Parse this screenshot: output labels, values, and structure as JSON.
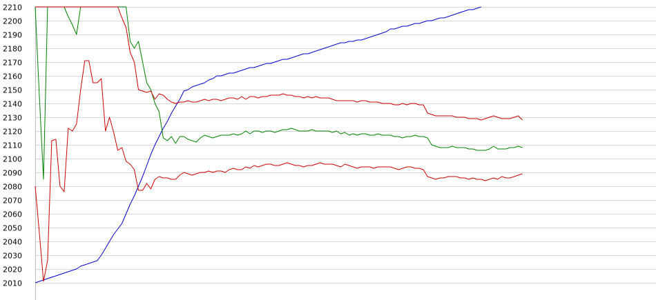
{
  "chart_data": {
    "type": "line",
    "title": "",
    "xlabel": "",
    "ylabel": "",
    "ylim": [
      2010,
      2210
    ],
    "yticks": [
      2010,
      2020,
      2030,
      2040,
      2050,
      2060,
      2070,
      2080,
      2090,
      2100,
      2110,
      2120,
      2130,
      2140,
      2150,
      2160,
      2170,
      2180,
      2190,
      2200,
      2210
    ],
    "grid": true,
    "legend": "none",
    "x_points": 150,
    "series": [
      {
        "color": "#0000cc",
        "values": [
          2010,
          2011,
          2012,
          2013,
          2014,
          2015,
          2016,
          2017,
          2018,
          2019,
          2020,
          2022,
          2023,
          2024,
          2025,
          2026,
          2030,
          2035,
          2040,
          2045,
          2049,
          2053,
          2060,
          2067,
          2073,
          2080,
          2087,
          2095,
          2103,
          2110,
          2116,
          2122,
          2127,
          2133,
          2138,
          2143,
          2149,
          2150,
          2152,
          2153,
          2154,
          2155,
          2157,
          2158,
          2160,
          2160,
          2161,
          2162,
          2162,
          2163,
          2164,
          2165,
          2166,
          2166,
          2167,
          2168,
          2169,
          2169,
          2170,
          2171,
          2172,
          2172,
          2173,
          2174,
          2175,
          2176,
          2176,
          2177,
          2178,
          2179,
          2180,
          2181,
          2182,
          2183,
          2184,
          2184,
          2185,
          2185,
          2186,
          2186,
          2187,
          2188,
          2189,
          2190,
          2191,
          2192,
          2194,
          2194,
          2195,
          2196,
          2196,
          2197,
          2198,
          2198,
          2199,
          2200,
          2200,
          2201,
          2202,
          2202,
          2203,
          2204,
          2205,
          2206,
          2207,
          2208,
          2208,
          2209,
          2210
        ]
      },
      {
        "color": "#008000",
        "values": [
          2210,
          2145,
          2085,
          2210,
          2210,
          2210,
          2210,
          2210,
          2203,
          2197,
          2190,
          2210,
          2210,
          2210,
          2210,
          2210,
          2210,
          2210,
          2210,
          2210,
          2210,
          2210,
          2210,
          2185,
          2180,
          2185,
          2170,
          2155,
          2150,
          2140,
          2134,
          2115,
          2113,
          2116,
          2111,
          2116,
          2116,
          2114,
          2113,
          2112,
          2115,
          2117,
          2116,
          2115,
          2116,
          2117,
          2117,
          2117,
          2118,
          2117,
          2118,
          2120,
          2118,
          2120,
          2120,
          2119,
          2120,
          2120,
          2119,
          2120,
          2121,
          2121,
          2122,
          2121,
          2120,
          2120,
          2120,
          2121,
          2120,
          2120,
          2120,
          2120,
          2119,
          2120,
          2118,
          2119,
          2117,
          2118,
          2117,
          2118,
          2118,
          2117,
          2117,
          2118,
          2117,
          2117,
          2117,
          2116,
          2116,
          2115,
          2116,
          2116,
          2117,
          2116,
          2116,
          2115,
          2110,
          2109,
          2108,
          2108,
          2108,
          2109,
          2108,
          2108,
          2108,
          2107,
          2107,
          2106,
          2106,
          2106,
          2107,
          2109,
          2107,
          2107,
          2107,
          2108,
          2108,
          2109,
          2108
        ]
      },
      {
        "color": "#cc0000",
        "values": [
          2210,
          2210,
          2210,
          2210,
          2210,
          2210,
          2210,
          2210,
          2210,
          2210,
          2210,
          2210,
          2210,
          2210,
          2210,
          2210,
          2210,
          2210,
          2210,
          2210,
          2210,
          2202,
          2195,
          2177,
          2170,
          2150,
          2149,
          2148,
          2149,
          2143,
          2147,
          2146,
          2143,
          2141,
          2140,
          2141,
          2141,
          2142,
          2141,
          2141,
          2142,
          2143,
          2142,
          2143,
          2143,
          2142,
          2143,
          2144,
          2144,
          2143,
          2145,
          2143,
          2145,
          2145,
          2144,
          2145,
          2145,
          2146,
          2146,
          2146,
          2147,
          2146,
          2146,
          2145,
          2145,
          2144,
          2145,
          2144,
          2145,
          2144,
          2144,
          2144,
          2143,
          2142,
          2142,
          2142,
          2142,
          2142,
          2141,
          2142,
          2142,
          2141,
          2141,
          2141,
          2140,
          2140,
          2140,
          2139,
          2139,
          2140,
          2139,
          2140,
          2140,
          2139,
          2139,
          2133,
          2132,
          2131,
          2131,
          2131,
          2131,
          2131,
          2130,
          2130,
          2130,
          2129,
          2129,
          2129,
          2128,
          2129,
          2130,
          2131,
          2130,
          2129,
          2129,
          2129,
          2130,
          2131,
          2128
        ]
      },
      {
        "color": "#cc0000",
        "values": [
          2080,
          2046,
          2011,
          2026,
          2113,
          2114,
          2080,
          2076,
          2122,
          2120,
          2125,
          2150,
          2171,
          2171,
          2155,
          2155,
          2158,
          2120,
          2130,
          2119,
          2106,
          2108,
          2098,
          2096,
          2092,
          2077,
          2077,
          2082,
          2078,
          2085,
          2087,
          2086,
          2086,
          2085,
          2085,
          2088,
          2090,
          2089,
          2088,
          2089,
          2090,
          2090,
          2091,
          2090,
          2091,
          2091,
          2090,
          2092,
          2093,
          2092,
          2092,
          2094,
          2093,
          2095,
          2094,
          2095,
          2096,
          2096,
          2095,
          2095,
          2096,
          2097,
          2096,
          2095,
          2095,
          2094,
          2095,
          2095,
          2096,
          2097,
          2096,
          2096,
          2096,
          2095,
          2094,
          2096,
          2095,
          2094,
          2093,
          2094,
          2094,
          2094,
          2093,
          2094,
          2094,
          2094,
          2094,
          2093,
          2092,
          2093,
          2094,
          2094,
          2093,
          2093,
          2092,
          2087,
          2086,
          2085,
          2086,
          2086,
          2087,
          2087,
          2087,
          2086,
          2086,
          2085,
          2086,
          2085,
          2085,
          2084,
          2085,
          2086,
          2085,
          2087,
          2086,
          2086,
          2087,
          2088,
          2089
        ]
      }
    ]
  }
}
